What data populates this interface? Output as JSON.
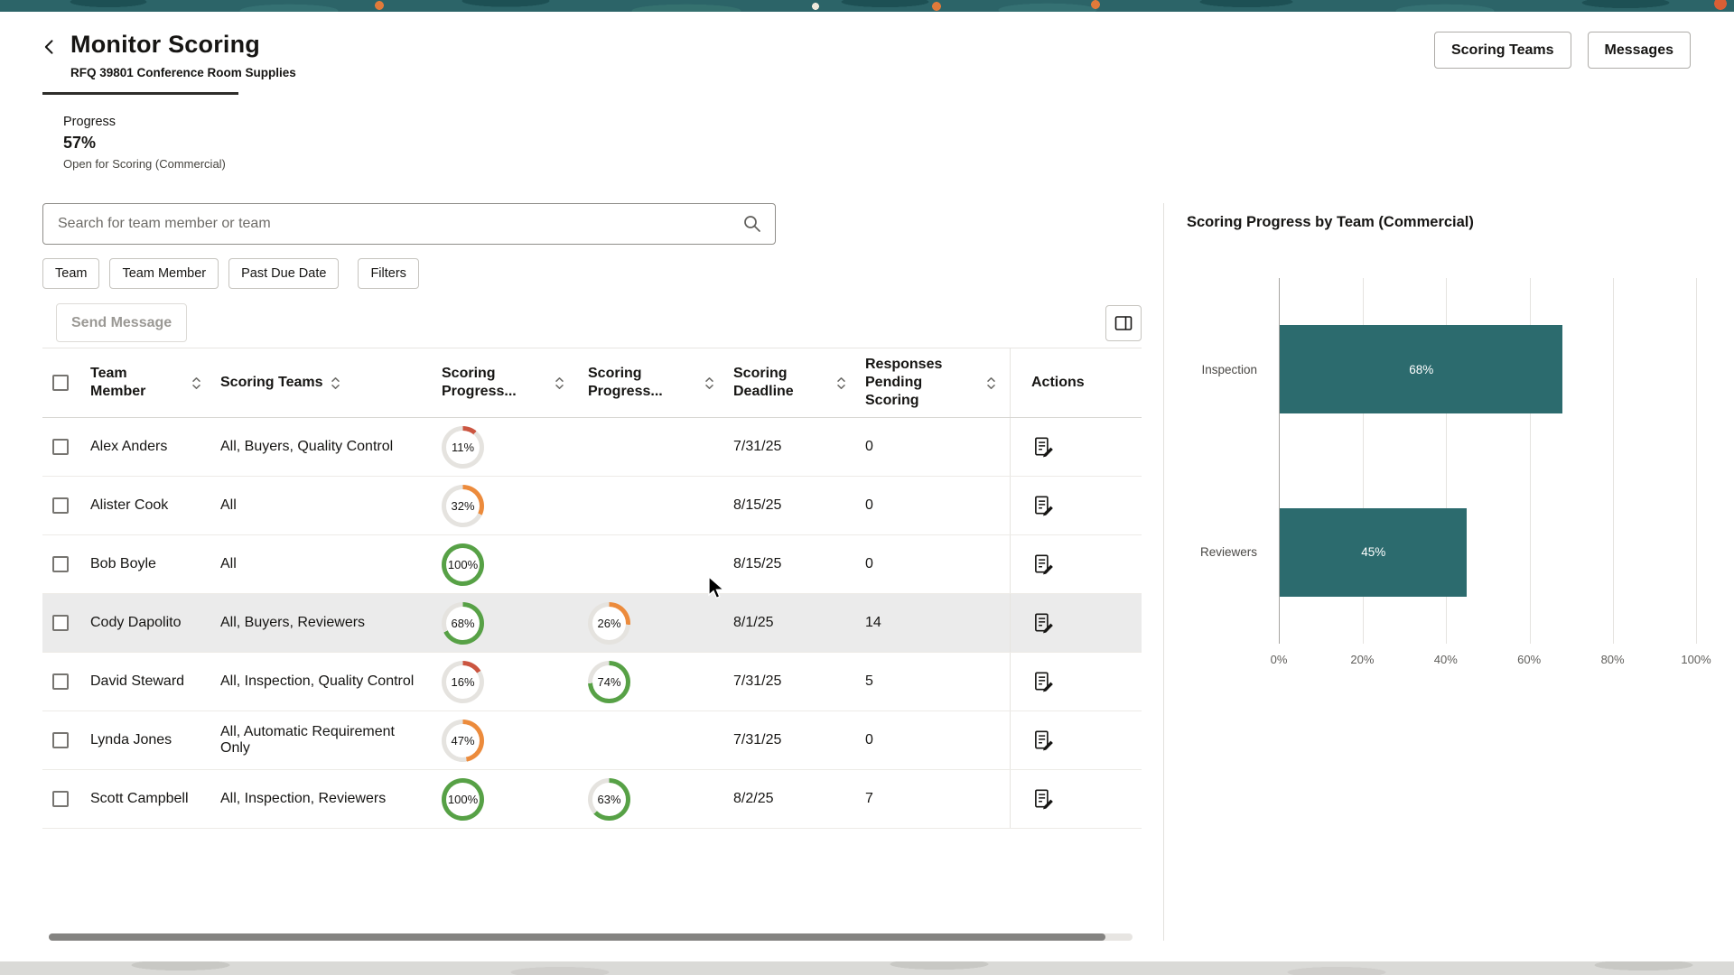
{
  "header": {
    "title": "Monitor Scoring",
    "subtitle": "RFQ 39801 Conference Room Supplies",
    "actions": [
      {
        "label": "Scoring Teams"
      },
      {
        "label": "Messages"
      }
    ]
  },
  "progress_summary": {
    "label": "Progress",
    "value": "57%",
    "status": "Open for Scoring (Commercial)"
  },
  "search": {
    "placeholder": "Search for team member or team",
    "value": ""
  },
  "filter_chips": [
    "Team",
    "Team Member",
    "Past Due Date",
    "Filters"
  ],
  "toolbar": {
    "send_message_label": "Send Message"
  },
  "table": {
    "columns": [
      "Team Member",
      "Scoring Teams",
      "Scoring Progress...",
      "Scoring Progress...",
      "Scoring Deadline",
      "Responses Pending Scoring",
      "Actions"
    ],
    "rows": [
      {
        "name": "Alex Anders",
        "teams": "All, Buyers, Quality Control",
        "progress1": 11,
        "progress2": null,
        "deadline": "7/31/25",
        "responses": "0",
        "highlight": false
      },
      {
        "name": "Alister Cook",
        "teams": "All",
        "progress1": 32,
        "progress2": null,
        "deadline": "8/15/25",
        "responses": "0",
        "highlight": false
      },
      {
        "name": "Bob Boyle",
        "teams": "All",
        "progress1": 100,
        "progress2": null,
        "deadline": "8/15/25",
        "responses": "0",
        "highlight": false
      },
      {
        "name": "Cody Dapolito",
        "teams": "All, Buyers, Reviewers",
        "progress1": 68,
        "progress2": 26,
        "deadline": "8/1/25",
        "responses": "14",
        "highlight": true
      },
      {
        "name": "David Steward",
        "teams": "All, Inspection, Quality Control",
        "progress1": 16,
        "progress2": 74,
        "deadline": "7/31/25",
        "responses": "5",
        "highlight": false
      },
      {
        "name": "Lynda Jones",
        "teams": "All, Automatic Requirement Only",
        "progress1": 47,
        "progress2": null,
        "deadline": "7/31/25",
        "responses": "0",
        "highlight": false
      },
      {
        "name": "Scott Campbell",
        "teams": "All, Inspection, Reviewers",
        "progress1": 100,
        "progress2": 63,
        "deadline": "8/2/25",
        "responses": "7",
        "highlight": false
      }
    ]
  },
  "donuts": {
    "track_color": "#e5e3df",
    "ranges": [
      {
        "min": 0,
        "color": "#cb5540"
      },
      {
        "min": 20,
        "color": "#ec8b3c"
      },
      {
        "min": 50,
        "color": "#57a146"
      }
    ]
  },
  "chart_data": {
    "type": "bar",
    "orientation": "horizontal",
    "title": "Scoring Progress by Team (Commercial)",
    "categories": [
      "Inspection",
      "Reviewers"
    ],
    "values": [
      68,
      45
    ],
    "value_labels": [
      "68%",
      "45%"
    ],
    "xlim": [
      0,
      100
    ],
    "x_ticks": [
      "0%",
      "20%",
      "40%",
      "60%",
      "80%",
      "100%"
    ],
    "bar_color": "#2c6b6e",
    "grid": true,
    "legend": false
  }
}
